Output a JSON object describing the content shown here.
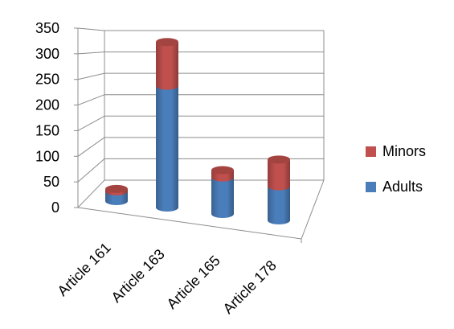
{
  "chart_data": {
    "type": "bar",
    "style": "stacked-3d-cylinder",
    "title": "",
    "xlabel": "",
    "ylabel": "",
    "categories": [
      "Article 161",
      "Article 163",
      "Article 165",
      "Article 178"
    ],
    "series": [
      {
        "name": "Adults",
        "color": "#4a7ebb",
        "values": [
          20,
          250,
          75,
          70
        ]
      },
      {
        "name": "Minors",
        "color": "#c0504d",
        "values": [
          5,
          90,
          15,
          55
        ]
      }
    ],
    "ylim": [
      0,
      350
    ],
    "yticks": [
      0,
      50,
      100,
      150,
      200,
      250,
      300,
      350
    ],
    "ytick_labels": [
      "0",
      "50",
      "100",
      "150",
      "200",
      "250",
      "300",
      "350"
    ],
    "grid": true,
    "legend_position": "right",
    "legend_order": [
      "Minors",
      "Adults"
    ]
  }
}
